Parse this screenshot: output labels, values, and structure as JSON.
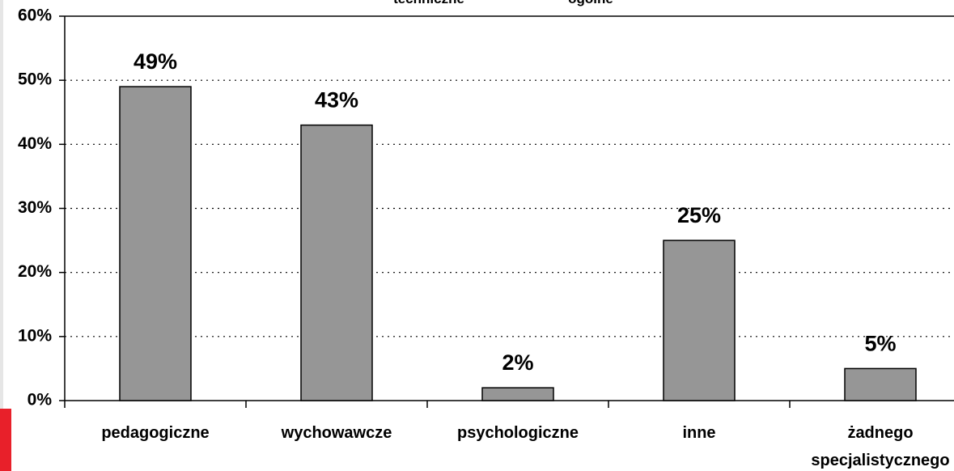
{
  "chart_data": {
    "type": "bar",
    "top_labels": [
      "techniczne",
      "ogólne"
    ],
    "categories": [
      "pedagogiczne",
      "wychowawcze",
      "psychologiczne",
      "inne",
      "żadnego specjalistycznego"
    ],
    "values": [
      49,
      43,
      2,
      25,
      5
    ],
    "value_labels": [
      "49%",
      "43%",
      "2%",
      "25%",
      "5%"
    ],
    "color": "#969696",
    "ylim": [
      0,
      60
    ],
    "yticks": [
      {
        "value": 0,
        "label": "0%"
      },
      {
        "value": 10,
        "label": "10%"
      },
      {
        "value": 20,
        "label": "20%"
      },
      {
        "value": 30,
        "label": "30%"
      },
      {
        "value": 40,
        "label": "40%"
      },
      {
        "value": 50,
        "label": "50%"
      },
      {
        "value": 60,
        "label": "60%"
      }
    ],
    "grid": true
  }
}
